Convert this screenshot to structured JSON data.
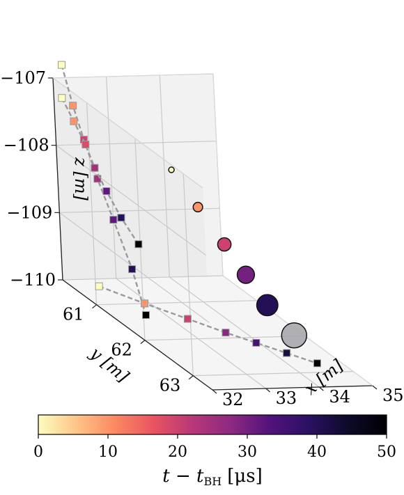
{
  "chart_data": {
    "type": "scatter",
    "projection": "3d",
    "title": "",
    "xlabel": "x [m]",
    "ylabel": "y [m]",
    "zlabel": "z [m]",
    "xlim": [
      32,
      35
    ],
    "ylim": [
      60.3,
      63.4
    ],
    "zlim": [
      -110,
      -107
    ],
    "xticks": [
      "32",
      "33",
      "34",
      "35"
    ],
    "yticks": [
      "61",
      "62",
      "63"
    ],
    "zticks": [
      "−107",
      "−108",
      "−109",
      "−110"
    ],
    "grid": true,
    "marker_size_encodes": "bubble radius (unlabeled)",
    "bubbles": [
      {
        "t": 0,
        "x": 33.0,
        "y": 61.6,
        "z": -107.7
      },
      {
        "t": 10,
        "x": 33.2,
        "y": 61.9,
        "z": -108.1
      },
      {
        "t": 20,
        "x": 33.4,
        "y": 62.2,
        "z": -108.5
      },
      {
        "t": 30,
        "x": 33.6,
        "y": 62.4,
        "z": -108.85
      },
      {
        "t": 40,
        "x": 33.8,
        "y": 62.6,
        "z": -109.2
      },
      {
        "t": 50,
        "x": 34.1,
        "y": 62.8,
        "z": -109.55,
        "color": "#a9a7ad"
      }
    ],
    "projections": {
      "back_wall_yz": [
        {
          "t": 0,
          "y": 60.5,
          "z": -106.7
        },
        {
          "t": 10,
          "y": 60.7,
          "z": -107.2
        },
        {
          "t": 20,
          "y": 60.9,
          "z": -107.6
        },
        {
          "t": 25,
          "y": 61.15,
          "z": -108.05
        },
        {
          "t": 32,
          "y": 61.45,
          "z": -108.5
        },
        {
          "t": 40,
          "y": 61.8,
          "z": -109.05
        },
        {
          "t": 50,
          "y": 62.05,
          "z": -109.6
        }
      ],
      "back_wall_xz": [
        {
          "t": 0,
          "x": 32.15,
          "z": -107.3
        },
        {
          "t": 10,
          "x": 32.35,
          "z": -107.65
        },
        {
          "t": 18,
          "x": 32.55,
          "z": -108.0
        },
        {
          "t": 25,
          "x": 32.7,
          "z": -108.35
        },
        {
          "t": 32,
          "x": 32.9,
          "z": -108.7
        },
        {
          "t": 40,
          "x": 33.15,
          "z": -109.1
        },
        {
          "t": 50,
          "x": 33.45,
          "z": -109.5
        }
      ],
      "floor_xy": [
        {
          "t": 0,
          "x": 32.5,
          "y": 60.5
        },
        {
          "t": 10,
          "x": 32.9,
          "y": 61.0
        },
        {
          "t": 20,
          "x": 33.3,
          "y": 61.45
        },
        {
          "t": 28,
          "x": 33.65,
          "y": 61.85
        },
        {
          "t": 35,
          "x": 33.95,
          "y": 62.15
        },
        {
          "t": 42,
          "x": 34.25,
          "y": 62.45
        },
        {
          "t": 50,
          "x": 34.55,
          "y": 62.75
        }
      ]
    },
    "colorbar": {
      "label": "t − t_BH [μs]",
      "label_main": "t − t",
      "label_sub": "BH",
      "label_unit": "[μs]",
      "ticks": [
        "0",
        "10",
        "20",
        "30",
        "40",
        "50"
      ],
      "range": [
        0,
        50
      ],
      "colormap": "magma_r",
      "colors": [
        "#fcfdbf",
        "#fec488",
        "#fb8861",
        "#e85362",
        "#b73779",
        "#8c2981",
        "#51127c",
        "#2a1162",
        "#0d0a29",
        "#000004"
      ]
    }
  }
}
